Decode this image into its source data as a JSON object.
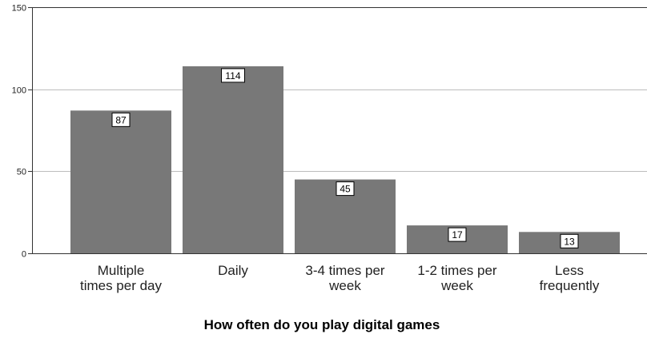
{
  "chart_data": {
    "type": "bar",
    "title": "",
    "xlabel": "How often do you play digital games",
    "ylabel": "",
    "categories": [
      [
        "Multiple",
        "times per day"
      ],
      [
        "Daily"
      ],
      [
        "3-4 times per",
        "week"
      ],
      [
        "1-2 times per",
        "week"
      ],
      [
        "Less",
        "frequently"
      ]
    ],
    "values": [
      87,
      114,
      45,
      17,
      13
    ],
    "data_labels": [
      "87",
      "114",
      "45",
      "17",
      "13"
    ],
    "ylim": [
      0,
      150
    ],
    "yticks": [
      0,
      50,
      100,
      150
    ],
    "grid": true,
    "bar_color": "#787878",
    "grid_color": "#bdbdbd",
    "axis_color": "#333333"
  }
}
